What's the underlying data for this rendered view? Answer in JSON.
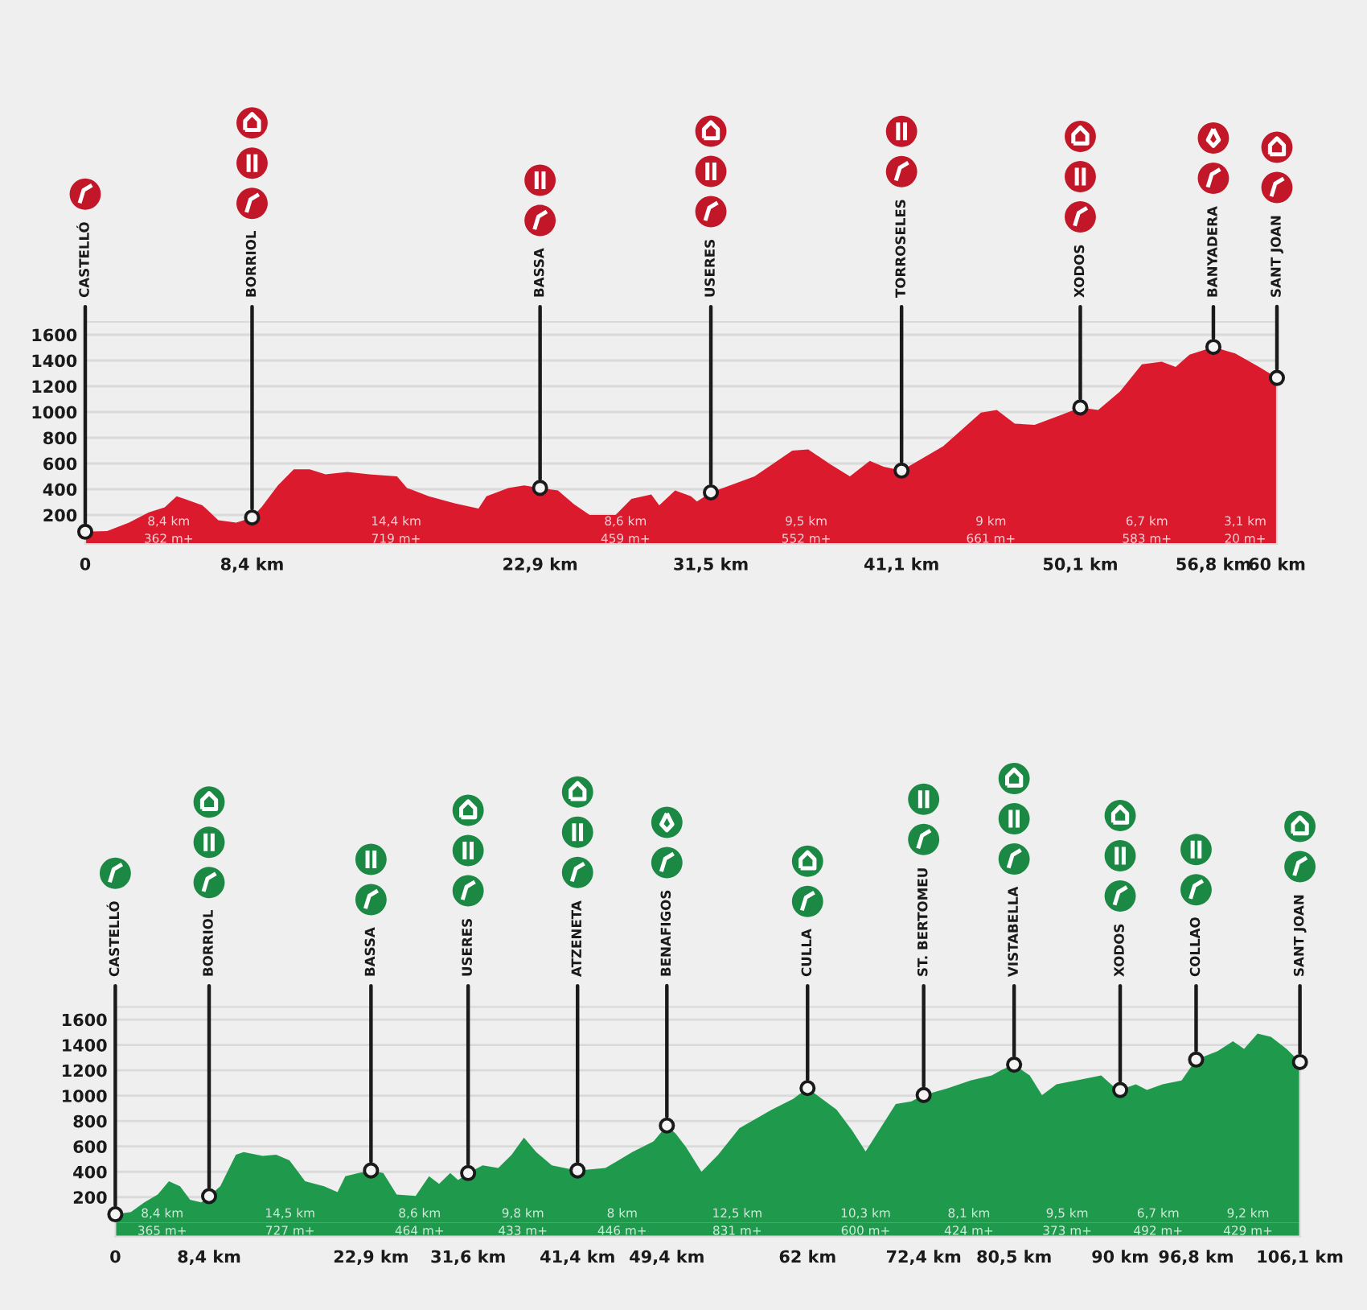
{
  "chart_data": [
    {
      "type": "area",
      "series": [
        {
          "type": "area",
          "color": "#dc1a2e",
          "x": [
            0,
            1.1,
            2.2,
            3.2,
            4.0,
            4.6,
            5.0,
            5.9,
            6.7,
            7.6,
            8.4,
            8.9,
            9.7,
            10.5,
            11.3,
            12.1,
            13.2,
            14.3,
            15.7,
            16.2,
            17.3,
            18.6,
            19.8,
            20.2,
            21.3,
            22.1,
            22.9,
            23.8,
            24.6,
            25.4,
            26.7,
            27.5,
            28.5,
            28.9,
            29.7,
            30.5,
            30.8,
            31.5,
            33.7,
            35.6,
            36.4,
            37.5,
            38.5,
            39.5,
            40.2,
            41.1,
            43.2,
            45.1,
            45.9,
            46.8,
            47.8,
            49.1,
            50.1,
            51.0,
            52.1,
            53.2,
            54.2,
            54.9,
            55.6,
            56.8,
            57.9,
            59.1,
            60
          ],
          "values": [
            70,
            75,
            140,
            220,
            260,
            345,
            325,
            275,
            160,
            140,
            180,
            265,
            430,
            555,
            555,
            515,
            535,
            515,
            500,
            410,
            345,
            290,
            250,
            345,
            410,
            430,
            410,
            390,
            285,
            200,
            200,
            325,
            360,
            275,
            390,
            345,
            305,
            375,
            500,
            700,
            710,
            595,
            500,
            620,
            575,
            545,
            735,
            995,
            1015,
            910,
            900,
            975,
            1035,
            1015,
            1160,
            1370,
            1390,
            1350,
            1445,
            1505,
            1455,
            1350,
            1265
          ]
        },
        {
          "type": "scatter",
          "color": "#1a1a1a",
          "marker": "circle",
          "x": [
            0,
            8.4,
            22.9,
            31.5,
            41.1,
            50.1,
            56.8,
            60
          ],
          "values": [
            70,
            180,
            410,
            375,
            545,
            1035,
            1505,
            1265
          ]
        }
      ],
      "xlim": [
        0,
        60
      ],
      "xticks": [
        0,
        {
          "value": 8.4,
          "label": "8,4 km"
        },
        {
          "value": 22.9,
          "label": "22,9 km"
        },
        {
          "value": 31.5,
          "label": "31,5 km"
        },
        {
          "value": 41.1,
          "label": "41,1 km"
        },
        {
          "value": 50.1,
          "label": "50,1 km"
        },
        {
          "value": 56.8,
          "label": "56,8 km"
        },
        {
          "value": 60,
          "label": "60 km"
        }
      ],
      "ylim": [
        -25,
        1700
      ],
      "bands": [
        {
          "axis": "y",
          "from": -25,
          "to": 0,
          "color": "#dc1a2e"
        }
      ],
      "yticks": [
        200,
        400,
        600,
        800,
        1000,
        1200,
        1400,
        1600
      ],
      "grid": "y",
      "annotations": [
        {
          "text": "CASTELLÓ",
          "x": 0,
          "y": 70
        },
        {
          "text": "BORRIOL",
          "x": 8.4,
          "y": 180
        },
        {
          "text": "BASSA",
          "x": 22.9,
          "y": 410
        },
        {
          "text": "USERES",
          "x": 31.5,
          "y": 375
        },
        {
          "text": "TORROSELES",
          "x": 41.1,
          "y": 545
        },
        {
          "text": "XODOS",
          "x": 50.1,
          "y": 1035
        },
        {
          "text": "BANYADERA",
          "x": 56.8,
          "y": 1505
        },
        {
          "text": "SANT JOAN",
          "x": 60,
          "y": 1265
        },
        "8,4 km\n362 m+",
        "14,4 km\n719 m+",
        "8,6 km\n459 m+",
        "9,5 km\n552 m+",
        "9 km\n661 m+",
        "6,7 km\n583 m+",
        "3,1 km\n20 m+"
      ]
    },
    {
      "type": "area",
      "series": [
        {
          "type": "area",
          "color": "#1f9a4c",
          "x": [
            0,
            1.4,
            2.6,
            3.8,
            4.8,
            5.8,
            6.7,
            7.7,
            8.4,
            9.4,
            10.8,
            11.5,
            13.2,
            14.4,
            15.6,
            17.0,
            18.7,
            19.9,
            20.6,
            21.8,
            22.9,
            24.0,
            25.2,
            26.9,
            28.1,
            29.0,
            30.0,
            30.7,
            31.6,
            32.9,
            34.3,
            35.5,
            36.6,
            37.7,
            39.1,
            41.4,
            43.9,
            46.3,
            48.2,
            49.4,
            50.2,
            51.1,
            52.5,
            54.0,
            55.9,
            58.8,
            60.7,
            62,
            64.6,
            66.0,
            67.2,
            69.9,
            71.3,
            72.4,
            74.6,
            76.6,
            78.5,
            79.4,
            80.5,
            81.9,
            83.0,
            84.3,
            86.6,
            88.3,
            89.3,
            90,
            91.4,
            92.4,
            93.8,
            95.5,
            96.8,
            98.7,
            100.1,
            101.1,
            102.3,
            103.5,
            104.9,
            106.1
          ],
          "values": [
            65,
            83,
            158,
            220,
            325,
            285,
            180,
            158,
            208,
            285,
            535,
            555,
            525,
            535,
            490,
            325,
            285,
            240,
            365,
            390,
            410,
            390,
            220,
            210,
            365,
            305,
            390,
            335,
            390,
            450,
            430,
            535,
            670,
            555,
            450,
            410,
            430,
            555,
            640,
            765,
            700,
            597,
            400,
            535,
            745,
            890,
            975,
            1060,
            890,
            725,
            560,
            935,
            955,
            1005,
            1060,
            1120,
            1160,
            1205,
            1245,
            1160,
            1005,
            1090,
            1130,
            1160,
            1080,
            1045,
            1090,
            1045,
            1090,
            1120,
            1285,
            1350,
            1430,
            1370,
            1490,
            1465,
            1370,
            1265
          ]
        },
        {
          "type": "scatter",
          "color": "#1a1a1a",
          "marker": "circle",
          "x": [
            0,
            8.4,
            22.9,
            31.6,
            41.4,
            49.4,
            62,
            72.4,
            80.5,
            90,
            96.8,
            106.1
          ],
          "values": [
            65,
            208,
            410,
            390,
            410,
            765,
            1060,
            1005,
            1245,
            1045,
            1285,
            1265
          ]
        }
      ],
      "xlim": [
        0,
        106.1
      ],
      "xticks": [
        0,
        {
          "value": 8.4,
          "label": "8,4 km"
        },
        {
          "value": 22.9,
          "label": "22,9 km"
        },
        {
          "value": 31.6,
          "label": "31,6 km"
        },
        {
          "value": 41.4,
          "label": "41,4 km"
        },
        {
          "value": 49.4,
          "label": "49,4 km"
        },
        {
          "value": 62,
          "label": "62 km"
        },
        {
          "value": 72.4,
          "label": "72,4 km"
        },
        {
          "value": 80.5,
          "label": "80,5 km"
        },
        {
          "value": 90,
          "label": "90 km"
        },
        {
          "value": 96.8,
          "label": "96,8 km"
        },
        {
          "value": 106.1,
          "label": "106,1 km"
        }
      ],
      "ylim": [
        -110,
        1700
      ],
      "bands": [
        {
          "axis": "y",
          "from": -110,
          "to": 0,
          "color": "#1f9a4c"
        }
      ],
      "yticks": [
        200,
        400,
        600,
        800,
        1000,
        1200,
        1400,
        1600
      ],
      "grid": "y",
      "annotations": [
        {
          "text": "CASTELLÓ",
          "x": 0,
          "y": 65
        },
        {
          "text": "BORRIOL",
          "x": 8.4,
          "y": 208
        },
        {
          "text": "BASSA",
          "x": 22.9,
          "y": 410
        },
        {
          "text": "USERES",
          "x": 31.6,
          "y": 390
        },
        {
          "text": "ATZENETA",
          "x": 41.4,
          "y": 410
        },
        {
          "text": "BENAFIGOS",
          "x": 49.4,
          "y": 765
        },
        {
          "text": "CULLA",
          "x": 62,
          "y": 1060
        },
        {
          "text": "ST. BERTOMEU",
          "x": 72.4,
          "y": 1005
        },
        {
          "text": "VISTABELLA",
          "x": 80.5,
          "y": 1245
        },
        {
          "text": "XODOS",
          "x": 90,
          "y": 1045
        },
        {
          "text": "COLLAO",
          "x": 96.8,
          "y": 1285
        },
        {
          "text": "SANT JOAN",
          "x": 106.1,
          "y": 1265
        },
        "8,4 km\n365 m+",
        "14,5 km\n727 m+",
        "8,6 km\n464 m+",
        "9,8 km\n433 m+",
        "8 km\n446 m+",
        "12,5 km\n831 m+",
        "10,3 km\n600 m+",
        "8,1 km\n424 m+",
        "9,5 km\n373 m+",
        "6,7 km\n492 m+",
        "9,2 km\n429 m+"
      ]
    }
  ]
}
